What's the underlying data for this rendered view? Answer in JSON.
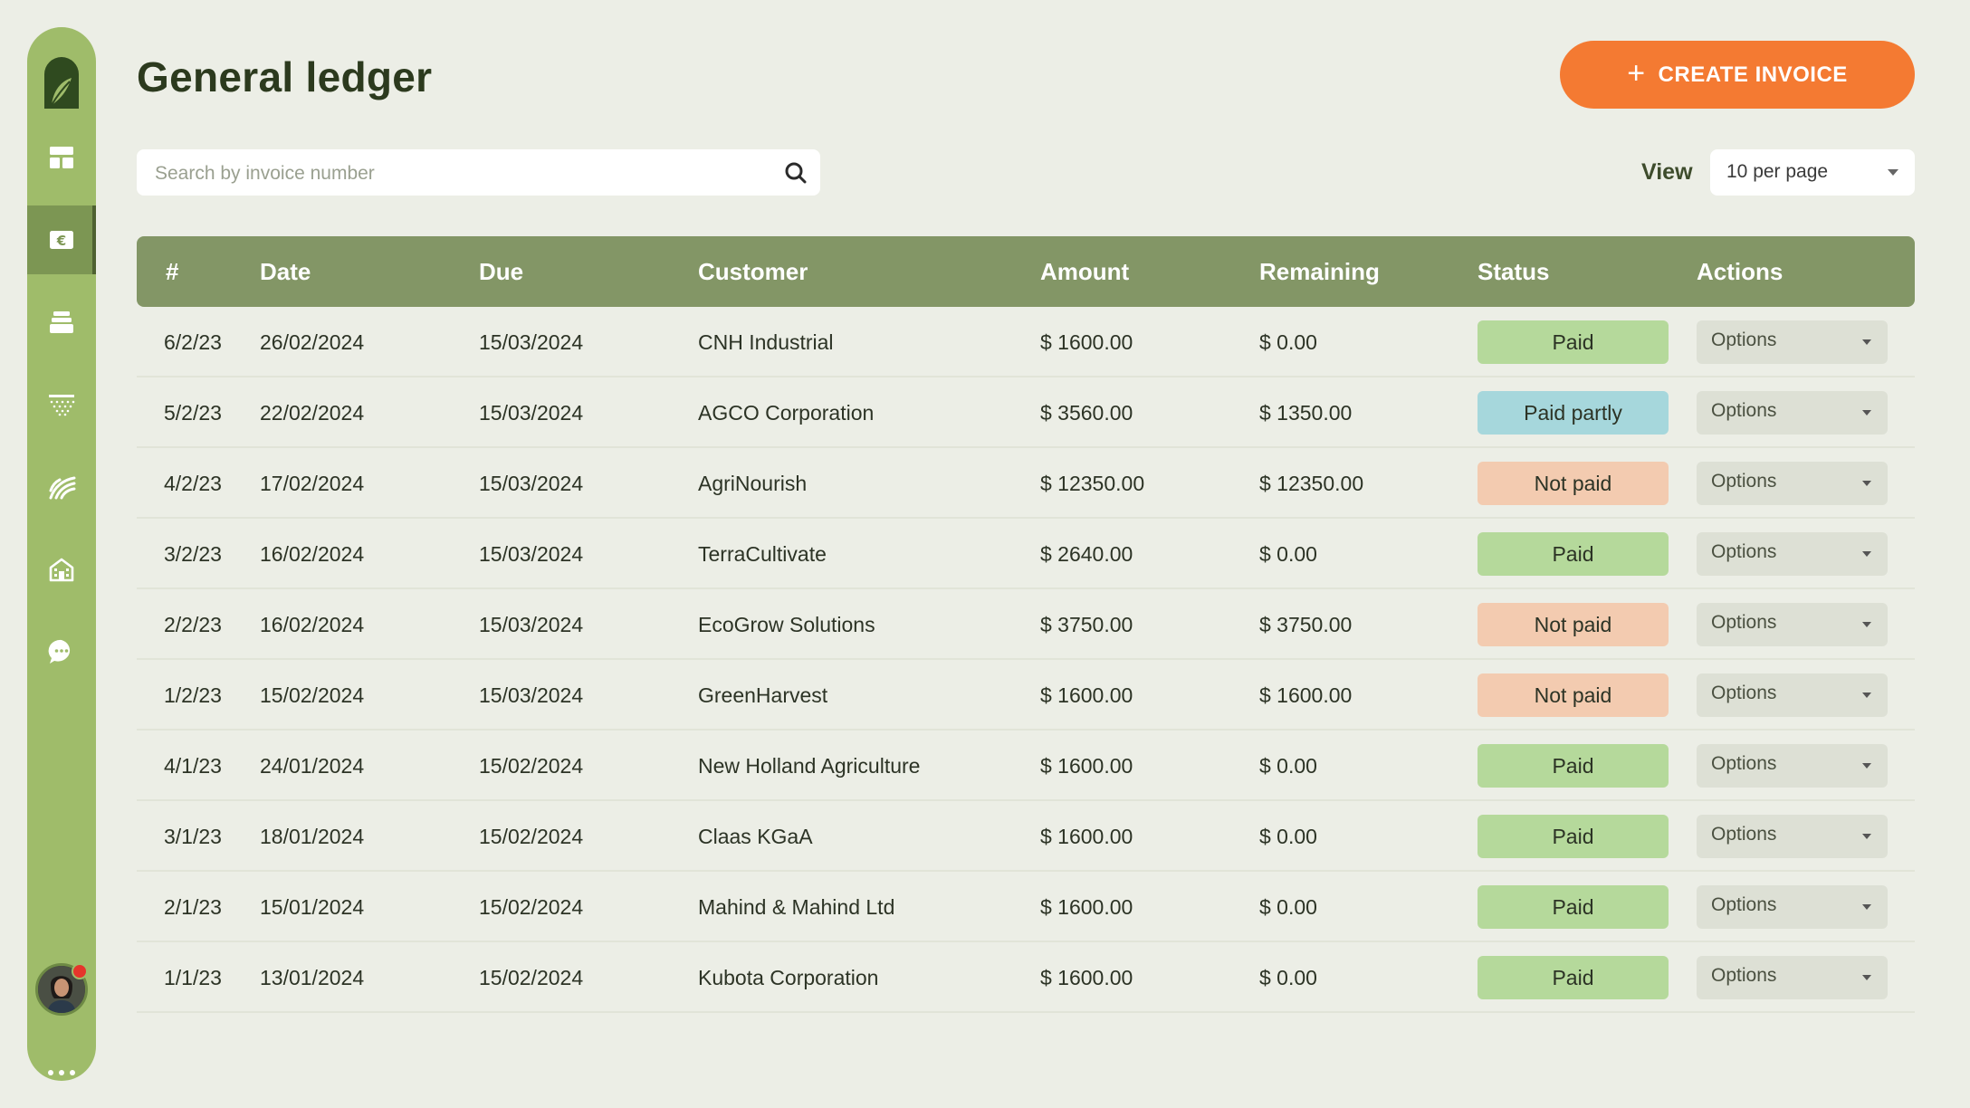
{
  "header": {
    "title": "General ledger",
    "create_label": "CREATE INVOICE"
  },
  "search": {
    "placeholder": "Search by invoice number",
    "value": ""
  },
  "view": {
    "label": "View",
    "selected": "10 per page"
  },
  "sidebar": {
    "items": [
      {
        "name": "dashboard",
        "icon": "layout-icon",
        "active": false
      },
      {
        "name": "ledger",
        "icon": "euro-icon",
        "active": true
      },
      {
        "name": "inventory",
        "icon": "boxes-icon",
        "active": false
      },
      {
        "name": "fields",
        "icon": "field-dots-icon",
        "active": false
      },
      {
        "name": "crops",
        "icon": "crop-rows-icon",
        "active": false
      },
      {
        "name": "buildings",
        "icon": "building-icon",
        "active": false
      },
      {
        "name": "messages",
        "icon": "chat-icon",
        "active": false
      }
    ]
  },
  "table": {
    "columns": [
      "#",
      "Date",
      "Due",
      "Customer",
      "Amount",
      "Remaining",
      "Status",
      "Actions"
    ],
    "options_label": "Options",
    "rows": [
      {
        "num": "6/2/23",
        "date": "26/02/2024",
        "due": "15/03/2024",
        "customer": "CNH Industrial",
        "amount": "$ 1600.00",
        "remaining": "$ 0.00",
        "status": "Paid",
        "status_type": "paid"
      },
      {
        "num": "5/2/23",
        "date": "22/02/2024",
        "due": "15/03/2024",
        "customer": "AGCO Corporation",
        "amount": "$ 3560.00",
        "remaining": "$ 1350.00",
        "status": "Paid partly",
        "status_type": "partly"
      },
      {
        "num": "4/2/23",
        "date": "17/02/2024",
        "due": "15/03/2024",
        "customer": "AgriNourish",
        "amount": "$ 12350.00",
        "remaining": "$ 12350.00",
        "status": "Not paid",
        "status_type": "notpaid"
      },
      {
        "num": "3/2/23",
        "date": "16/02/2024",
        "due": "15/03/2024",
        "customer": "TerraCultivate",
        "amount": "$ 2640.00",
        "remaining": "$ 0.00",
        "status": "Paid",
        "status_type": "paid"
      },
      {
        "num": "2/2/23",
        "date": "16/02/2024",
        "due": "15/03/2024",
        "customer": "EcoGrow Solutions",
        "amount": "$ 3750.00",
        "remaining": "$ 3750.00",
        "status": "Not paid",
        "status_type": "notpaid"
      },
      {
        "num": "1/2/23",
        "date": "15/02/2024",
        "due": "15/03/2024",
        "customer": "GreenHarvest",
        "amount": "$ 1600.00",
        "remaining": "$ 1600.00",
        "status": "Not paid",
        "status_type": "notpaid"
      },
      {
        "num": "4/1/23",
        "date": "24/01/2024",
        "due": "15/02/2024",
        "customer": "New Holland Agriculture",
        "amount": "$ 1600.00",
        "remaining": "$ 0.00",
        "status": "Paid",
        "status_type": "paid"
      },
      {
        "num": "3/1/23",
        "date": "18/01/2024",
        "due": "15/02/2024",
        "customer": "Claas KGaA",
        "amount": "$ 1600.00",
        "remaining": "$ 0.00",
        "status": "Paid",
        "status_type": "paid"
      },
      {
        "num": "2/1/23",
        "date": "15/01/2024",
        "due": "15/02/2024",
        "customer": "Mahind & Mahind Ltd",
        "amount": "$ 1600.00",
        "remaining": "$ 0.00",
        "status": "Paid",
        "status_type": "paid"
      },
      {
        "num": "1/1/23",
        "date": "13/01/2024",
        "due": "15/02/2024",
        "customer": "Kubota Corporation",
        "amount": "$ 1600.00",
        "remaining": "$ 0.00",
        "status": "Paid",
        "status_type": "paid"
      }
    ]
  },
  "colors": {
    "accent": "#f47a32",
    "sidebar": "#9fbc6a",
    "table_header": "#839666",
    "paid": "#b5d99b",
    "paid_partly": "#a6d7dc",
    "not_paid": "#f3cbb0"
  }
}
